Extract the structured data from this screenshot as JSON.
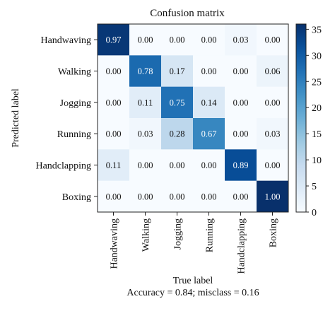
{
  "chart_data": {
    "type": "heatmap",
    "title": "Confusion matrix",
    "xlabel": "True label",
    "ylabel": "Predicted label",
    "caption": "Accuracy = 0.84; misclass = 0.16",
    "row_labels": [
      "Handwaving",
      "Walking",
      "Jogging",
      "Running",
      "Handclapping",
      "Boxing"
    ],
    "col_labels": [
      "Handwaving",
      "Walking",
      "Jogging",
      "Running",
      "Handclapping",
      "Boxing"
    ],
    "cell_labels": [
      [
        "0.97",
        "0.00",
        "0.00",
        "0.00",
        "0.03",
        "0.00"
      ],
      [
        "0.00",
        "0.78",
        "0.17",
        "0.00",
        "0.00",
        "0.06"
      ],
      [
        "0.00",
        "0.11",
        "0.75",
        "0.14",
        "0.00",
        "0.00"
      ],
      [
        "0.00",
        "0.03",
        "0.28",
        "0.67",
        "0.00",
        "0.03"
      ],
      [
        "0.11",
        "0.00",
        "0.00",
        "0.00",
        "0.89",
        "0.00"
      ],
      [
        "0.00",
        "0.00",
        "0.00",
        "0.00",
        "0.00",
        "1.00"
      ]
    ],
    "counts": [
      [
        35,
        0,
        0,
        0,
        1,
        0
      ],
      [
        0,
        28,
        6,
        0,
        0,
        2
      ],
      [
        0,
        4,
        27,
        5,
        0,
        0
      ],
      [
        0,
        1,
        10,
        24,
        0,
        1
      ],
      [
        4,
        0,
        0,
        0,
        32,
        0
      ],
      [
        0,
        0,
        0,
        0,
        0,
        36
      ]
    ],
    "colorbar": {
      "min": 0,
      "max": 36,
      "ticks": [
        "0",
        "5",
        "10",
        "15",
        "20",
        "25",
        "30",
        "35"
      ],
      "colormap": "Blues",
      "low_color": "#f7fbff",
      "high_color": "#08306b"
    },
    "grid": false
  }
}
